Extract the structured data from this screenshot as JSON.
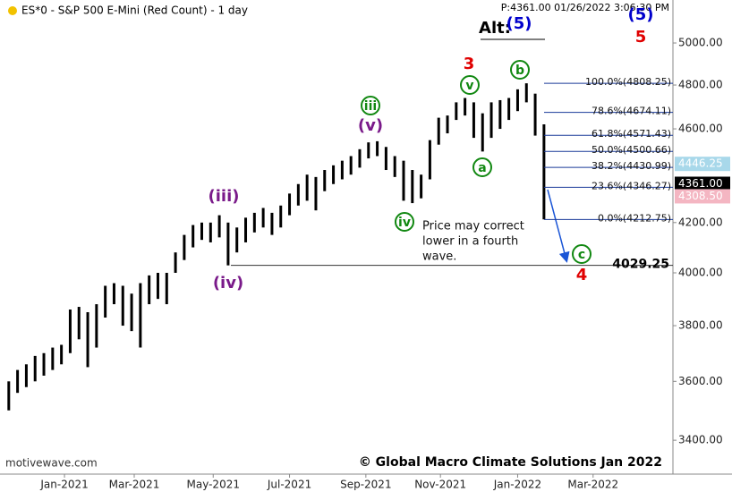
{
  "chart_data": {
    "type": "ohlc",
    "title": "ES*0 - S&P 500 E-Mini (Red Count) - 1 day",
    "status": "P:4361.00  01/26/2022 3:06:30 PM",
    "watermark": "motivewave.com",
    "copyright": "© Global Macro Climate Solutions Jan 2022",
    "color": "#000000",
    "log_scale": true,
    "x": [
      1,
      2,
      3,
      4,
      5,
      6,
      7,
      8,
      9,
      10,
      11,
      12,
      13,
      14,
      15,
      16,
      17,
      18,
      19,
      20,
      21,
      22,
      23,
      24,
      25,
      26,
      27,
      28,
      29,
      30,
      31,
      32,
      33,
      34,
      35,
      36,
      37,
      38,
      39,
      40,
      41,
      42,
      43,
      44,
      45,
      46,
      47,
      48,
      49,
      50,
      51,
      52,
      53,
      54,
      55,
      56,
      57,
      58,
      59,
      60,
      61,
      62
    ],
    "high": [
      3600,
      3640,
      3660,
      3690,
      3700,
      3720,
      3730,
      3860,
      3870,
      3850,
      3880,
      3950,
      3960,
      3950,
      3920,
      3960,
      3990,
      4000,
      4000,
      4080,
      4150,
      4190,
      4200,
      4200,
      4230,
      4200,
      4180,
      4220,
      4240,
      4260,
      4240,
      4270,
      4320,
      4360,
      4400,
      4390,
      4420,
      4440,
      4460,
      4480,
      4510,
      4540,
      4545,
      4520,
      4480,
      4460,
      4420,
      4400,
      4550,
      4650,
      4660,
      4720,
      4740,
      4720,
      4670,
      4720,
      4730,
      4740,
      4780,
      4808,
      4760,
      4620
    ],
    "low": [
      3500,
      3560,
      3580,
      3600,
      3620,
      3640,
      3660,
      3700,
      3750,
      3650,
      3720,
      3830,
      3880,
      3800,
      3780,
      3720,
      3880,
      3900,
      3880,
      4000,
      4050,
      4100,
      4130,
      4120,
      4140,
      4029,
      4080,
      4120,
      4160,
      4180,
      4150,
      4180,
      4230,
      4270,
      4290,
      4250,
      4330,
      4360,
      4380,
      4400,
      4430,
      4470,
      4480,
      4420,
      4390,
      4290,
      4280,
      4300,
      4380,
      4530,
      4580,
      4640,
      4660,
      4560,
      4500,
      4560,
      4600,
      4640,
      4680,
      4720,
      4570,
      4213
    ],
    "xlim": [
      0,
      76.7
    ],
    "xticks": [
      {
        "value": 7.35,
        "label": "Jan-2021"
      },
      {
        "value": 15.3,
        "label": "Mar-2021"
      },
      {
        "value": 24.3,
        "label": "May-2021"
      },
      {
        "value": 33.0,
        "label": "Jul-2021"
      },
      {
        "value": 41.7,
        "label": "Sep-2021"
      },
      {
        "value": 50.2,
        "label": "Nov-2021"
      },
      {
        "value": 59.0,
        "label": "Jan-2022"
      },
      {
        "value": 67.6,
        "label": "Mar-2022"
      }
    ],
    "ylim": [
      3290,
      5213
    ],
    "yticks": [
      {
        "value": 3400,
        "label": "3400.00"
      },
      {
        "value": 3600,
        "label": "3600.00"
      },
      {
        "value": 3800,
        "label": "3800.00"
      },
      {
        "value": 4000,
        "label": "4000.00"
      },
      {
        "value": 4200,
        "label": "4200.00"
      },
      {
        "value": 4600,
        "label": "4600.00"
      },
      {
        "value": 4800,
        "label": "4800.00"
      },
      {
        "value": 5000,
        "label": "5000.00"
      }
    ],
    "price_markers": [
      {
        "value": 4446.25,
        "label": "4446.25",
        "color": "#a8d8ea"
      },
      {
        "value": 4361.0,
        "label": "4361.00",
        "color": "#000000"
      },
      {
        "value": 4308.5,
        "label": "4308.50",
        "color": "#f4b6c2"
      }
    ],
    "fib_levels": [
      {
        "value": 4808.25,
        "label": "100.0%(4808.25)"
      },
      {
        "value": 4674.11,
        "label": "78.6%(4674.11)"
      },
      {
        "value": 4571.43,
        "label": "61.8%(4571.43)"
      },
      {
        "value": 4500.66,
        "label": "50.0%(4500.66)"
      },
      {
        "value": 4430.99,
        "label": "38.2%(4430.99)"
      },
      {
        "value": 4346.27,
        "label": "23.6%(4346.27)"
      },
      {
        "value": 4212.75,
        "label": "0.0%(4212.75)"
      }
    ],
    "support": {
      "value": 4029.25,
      "label": "4029.25"
    },
    "annotations": [
      {
        "text": "3",
        "color": "#e00000",
        "style": "bold"
      },
      {
        "text": "Alt:",
        "color": "#000000",
        "style": "bold"
      },
      {
        "text": "(5)",
        "color": "#0000cc",
        "style": "bold"
      },
      {
        "text": "(5)",
        "color": "#0000cc",
        "style": "bold"
      },
      {
        "text": "5",
        "color": "#e00000",
        "style": "bold"
      },
      {
        "text": "b",
        "color": "#118811",
        "style": "circle"
      },
      {
        "text": "v",
        "color": "#118811",
        "style": "circle"
      },
      {
        "text": "iii",
        "color": "#118811",
        "style": "circle"
      },
      {
        "text": "(v)",
        "color": "#7a1a8a",
        "style": "bold"
      },
      {
        "text": "a",
        "color": "#118811",
        "style": "circle"
      },
      {
        "text": "iv",
        "color": "#118811",
        "style": "circle"
      },
      {
        "text": "(iii)",
        "color": "#7a1a8a",
        "style": "bold"
      },
      {
        "text": "(iv)",
        "color": "#7a1a8a",
        "style": "bold"
      },
      {
        "text": "c",
        "color": "#118811",
        "style": "circle"
      },
      {
        "text": "4",
        "color": "#e00000",
        "style": "bold"
      }
    ],
    "note": [
      "Price may correct",
      "lower in a fourth",
      "wave."
    ]
  }
}
